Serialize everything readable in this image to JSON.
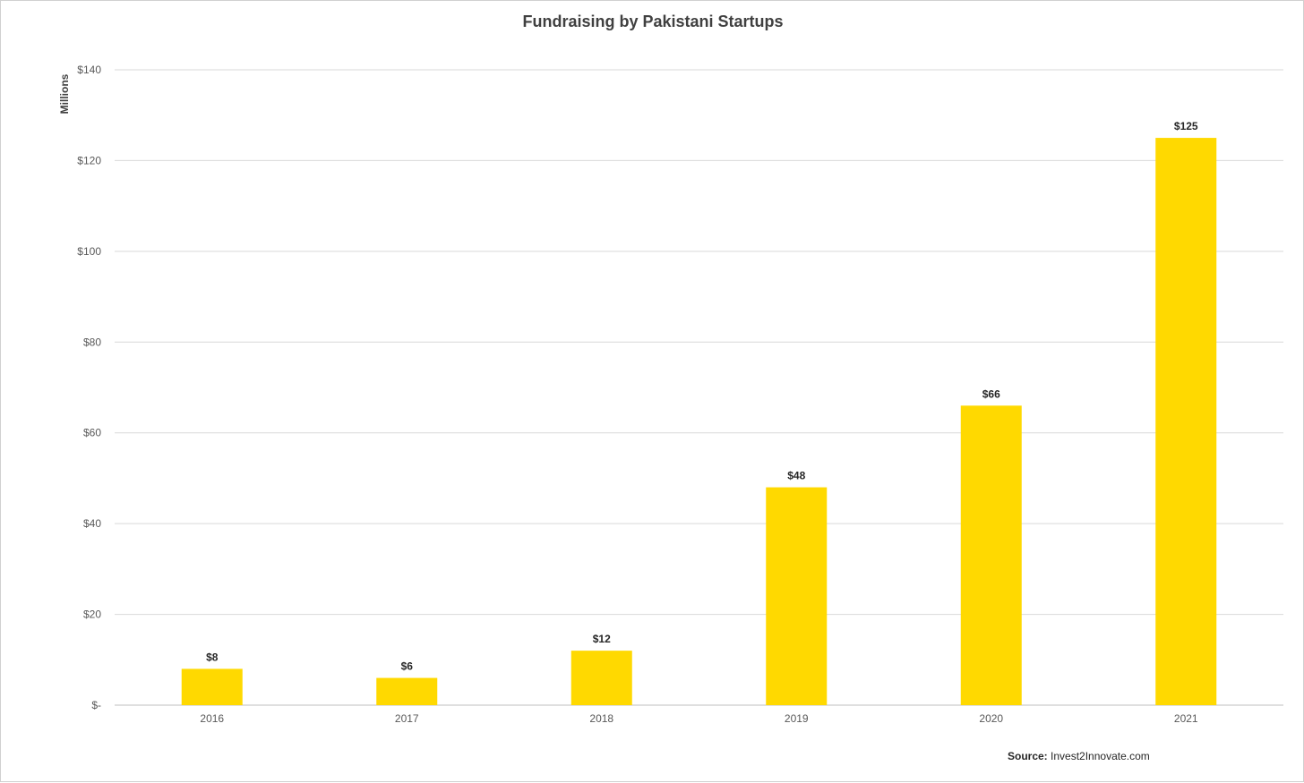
{
  "chart_data": {
    "type": "bar",
    "title": "Fundraising by Pakistani Startups",
    "ylabel": "Millions",
    "xlabel": "",
    "categories": [
      "2016",
      "2017",
      "2018",
      "2019",
      "2020",
      "2021"
    ],
    "values": [
      8,
      6,
      12,
      48,
      66,
      125
    ],
    "data_labels": [
      "$8",
      "$6",
      "$12",
      "$48",
      "$66",
      "$125"
    ],
    "ylim": [
      0,
      140
    ],
    "yticks": [
      0,
      20,
      40,
      60,
      80,
      100,
      120,
      140
    ],
    "ytick_labels": [
      "$-",
      "$20",
      "$40",
      "$60",
      "$80",
      "$100",
      "$120",
      "$140"
    ],
    "grid": true,
    "legend": "none",
    "bar_color": "#FFD900"
  },
  "source": {
    "label": "Source:",
    "text": "Invest2Innovate.com"
  },
  "colors": {
    "gridline": "#d9d9d9",
    "title": "#404040"
  }
}
